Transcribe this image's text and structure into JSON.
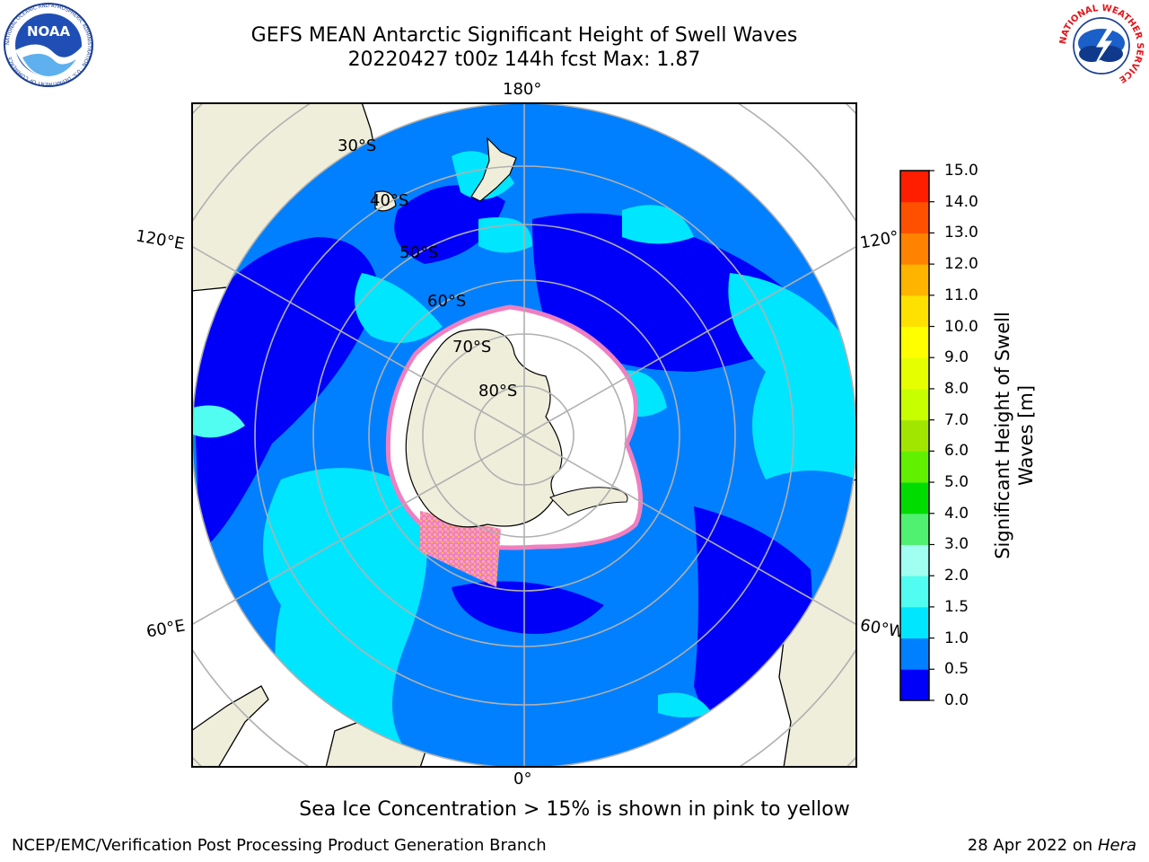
{
  "title": {
    "line1": "GEFS MEAN Antarctic Significant Height of Swell Waves",
    "line2": "20220427 t00z 144h fcst   Max: 1.87"
  },
  "map": {
    "projection": "south-polar-stereographic",
    "longitude_labels": {
      "lon_180": "180°",
      "lon_0": "0°",
      "lon_120e": "120°E",
      "lon_120w": "120°",
      "lon_60e": "60°E",
      "lon_60w": "60°W"
    },
    "latitude_labels": {
      "lat_30s": "30°S",
      "lat_40s": "40°S",
      "lat_50s": "50°S",
      "lat_60s": "60°S",
      "lat_70s": "70°S",
      "lat_80s": "80°S"
    },
    "colors": {
      "land": "#efeedb",
      "coast": "#000000",
      "grid": "#b0b0b0"
    }
  },
  "colorbar": {
    "title_line1": "Significant Height of Swell",
    "title_line2": "Waves [m]",
    "ticks": [
      "0.0",
      "0.5",
      "1.0",
      "1.5",
      "2.0",
      "3.0",
      "4.0",
      "5.0",
      "6.0",
      "7.0",
      "8.0",
      "9.0",
      "10.0",
      "11.0",
      "12.0",
      "13.0",
      "14.0",
      "15.0"
    ],
    "colors": [
      "#0000fa",
      "#0080ff",
      "#00e6ff",
      "#50fdf0",
      "#a0fff0",
      "#50f070",
      "#00dc00",
      "#60f000",
      "#a0e600",
      "#c8ff00",
      "#e6ff00",
      "#ffff00",
      "#ffe100",
      "#ffb400",
      "#ff8200",
      "#ff5000",
      "#ff1e00"
    ]
  },
  "caption": "Sea Ice Concentration > 15% is shown in pink to yellow",
  "footer": {
    "left": "NCEP/EMC/Verification Post Processing Product Generation Branch",
    "right_prefix": "28 Apr 2022 on ",
    "right_host": "Hera"
  },
  "logos": {
    "left_text": "NOAA",
    "left_ring": "NATIONAL OCEANIC AND ATMOSPHERIC ADMINISTRATION · U.S. DEPARTMENT OF COMMERCE",
    "right_ring": "NATIONAL WEATHER SERVICE"
  }
}
